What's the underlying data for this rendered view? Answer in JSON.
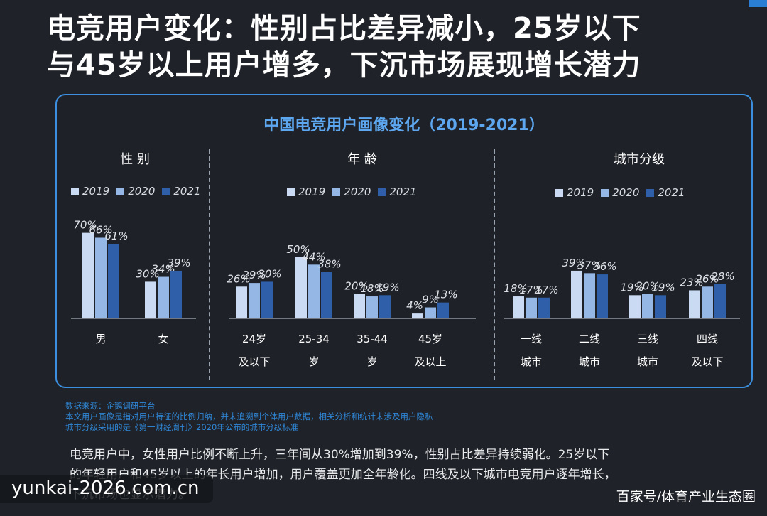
{
  "headline": {
    "line1": "电竞用户变化：性别占比差异减小，25岁以下",
    "line2": "与45岁以上用户增多，下沉市场展现增长潜力"
  },
  "panel_title": "中国电竞用户画像变化（2019-2021）",
  "legend": [
    "2019",
    "2020",
    "2021"
  ],
  "colors": {
    "2019": "#c9daf2",
    "2020": "#94b7e6",
    "2021": "#2e5fa8",
    "panel_border": "#3c8fde",
    "title": "#5da7f0"
  },
  "chart_data": [
    {
      "type": "bar",
      "title": "性 别",
      "categories": [
        [
          "男"
        ],
        [
          "女"
        ]
      ],
      "series": [
        {
          "name": "2019",
          "values": [
            70,
            30
          ]
        },
        {
          "name": "2020",
          "values": [
            66,
            34
          ]
        },
        {
          "name": "2021",
          "values": [
            61,
            39
          ]
        }
      ],
      "value_labels": [
        [
          "70%",
          "66%",
          "61%"
        ],
        [
          "30%",
          "34%",
          "39%"
        ]
      ],
      "ylim": [
        0,
        100
      ]
    },
    {
      "type": "bar",
      "title": "年 龄",
      "categories": [
        [
          "24岁",
          "及以下"
        ],
        [
          "25-34",
          "岁"
        ],
        [
          "35-44",
          "岁"
        ],
        [
          "45岁",
          "及以上"
        ]
      ],
      "series": [
        {
          "name": "2019",
          "values": [
            26,
            50,
            20,
            4
          ]
        },
        {
          "name": "2020",
          "values": [
            29,
            44,
            18,
            9
          ]
        },
        {
          "name": "2021",
          "values": [
            30,
            38,
            19,
            13
          ]
        }
      ],
      "value_labels": [
        [
          "26%",
          "29%",
          "30%"
        ],
        [
          "50%",
          "44%",
          "38%"
        ],
        [
          "20%",
          "18%",
          "19%"
        ],
        [
          "4%",
          "9%",
          "13%"
        ]
      ],
      "ylim": [
        0,
        100
      ]
    },
    {
      "type": "bar",
      "title": "城市分级",
      "categories": [
        [
          "一线",
          "城市"
        ],
        [
          "二线",
          "城市"
        ],
        [
          "三线",
          "城市"
        ],
        [
          "四线",
          "及以下"
        ]
      ],
      "series": [
        {
          "name": "2019",
          "values": [
            18,
            39,
            19,
            23
          ]
        },
        {
          "name": "2020",
          "values": [
            17,
            37,
            20,
            26
          ]
        },
        {
          "name": "2021",
          "values": [
            17,
            36,
            19,
            28
          ]
        }
      ],
      "value_labels": [
        [
          "18%",
          "17%",
          "17%"
        ],
        [
          "39%",
          "37%",
          "36%"
        ],
        [
          "19%",
          "20%",
          "19%"
        ],
        [
          "23%",
          "26%",
          "28%"
        ]
      ],
      "ylim": [
        0,
        100
      ]
    }
  ],
  "footnotes": [
    "数据来源：企鹅调研平台",
    "本文用户画像是指对用户特征的比例归纳，并未追溯到个体用户数据，相关分析和统计未涉及用户隐私",
    "城市分级采用的是《第一财经周刊》2020年公布的城市分级标准"
  ],
  "body_text": [
    "电竞用户中，女性用户比例不断上升，三年间从30%增加到39%，性别占比差异持续弱化。25岁以下",
    "的年轻用户和45岁以上的年长用户增加，用户覆盖更加全年龄化。四线及以下城市电竞用户逐年增长，",
    "下沉市场也显示潜力。"
  ],
  "watermark_left": "yunkai-2026.com.cn",
  "watermark_right": "百家号/体育产业生态圈"
}
